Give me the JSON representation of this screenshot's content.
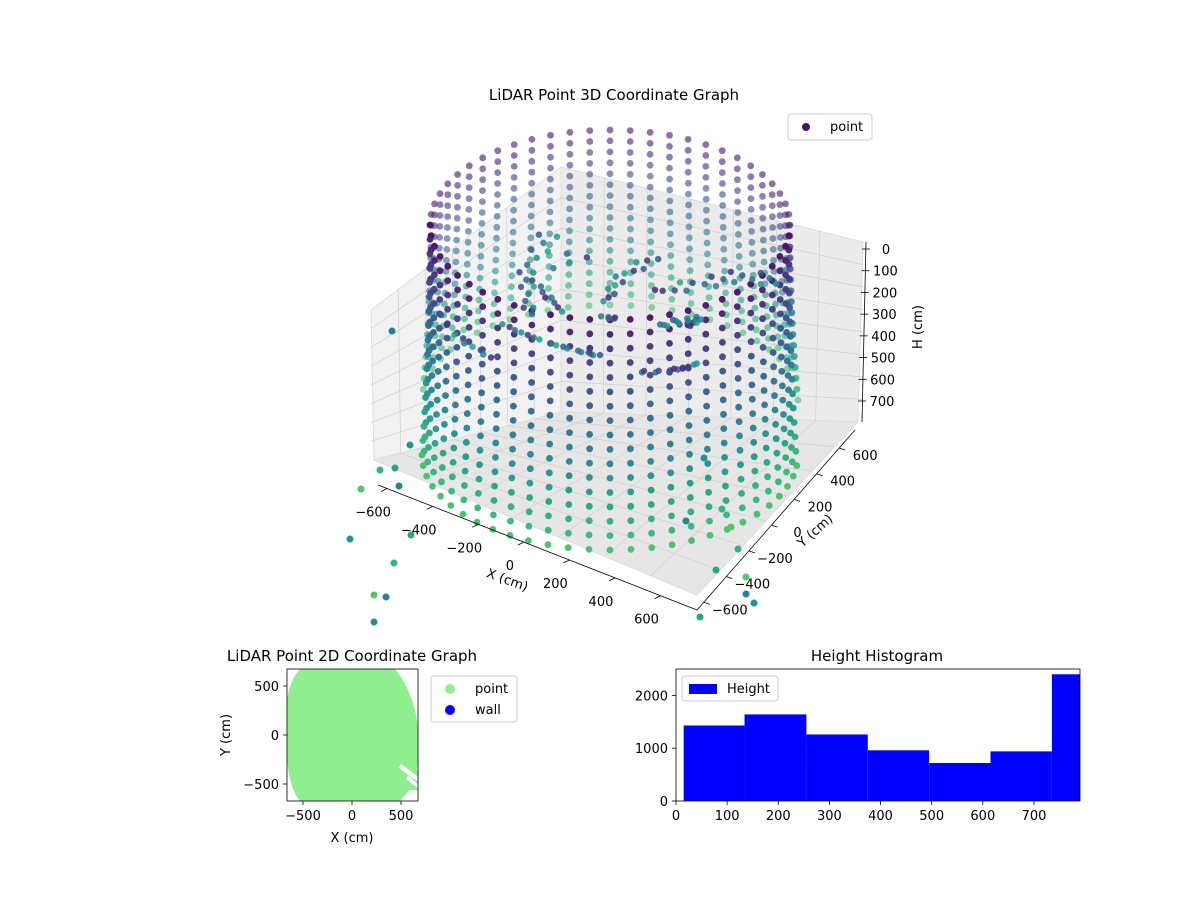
{
  "chart_data": [
    {
      "type": "scatter3d",
      "title": "LiDAR Point 3D Coordinate Graph",
      "xlabel": "X (cm)",
      "ylabel": "Y (cm)",
      "zlabel": "H (cm)",
      "x_ticks": [
        "−600",
        "−400",
        "−200",
        "0",
        "200",
        "400",
        "600"
      ],
      "y_ticks": [
        "−600",
        "−400",
        "−200",
        "0",
        "200",
        "400",
        "600"
      ],
      "z_ticks": [
        "0",
        "100",
        "200",
        "300",
        "400",
        "500",
        "600",
        "700"
      ],
      "xlim": [
        -700,
        700
      ],
      "ylim": [
        -700,
        700
      ],
      "zlim": [
        0,
        790
      ],
      "z_inverted": true,
      "colormap": "viridis",
      "legend": [
        {
          "label": "point",
          "color": "#46166b"
        }
      ],
      "legend_position": "upper right",
      "grid": true
    },
    {
      "type": "scatter",
      "title": "LiDAR Point 2D Coordinate Graph",
      "xlabel": "X (cm)",
      "ylabel": "Y (cm)",
      "x_ticks": [
        "−500",
        "0",
        "500"
      ],
      "y_ticks": [
        "500",
        "0",
        "−500"
      ],
      "xlim": [
        -690,
        690
      ],
      "ylim": [
        -690,
        690
      ],
      "series": [
        {
          "name": "point",
          "color": "#90ee90"
        },
        {
          "name": "wall",
          "color": "#0000ff"
        }
      ],
      "legend_position": "outside right"
    },
    {
      "type": "bar",
      "title": "Height Histogram",
      "x_ticks": [
        "0",
        "100",
        "200",
        "300",
        "400",
        "500",
        "600",
        "700"
      ],
      "y_ticks": [
        "0",
        "1000",
        "2000"
      ],
      "bins": [
        {
          "start": 15,
          "end": 134,
          "count": 1430
        },
        {
          "start": 134,
          "end": 255,
          "count": 1640
        },
        {
          "start": 255,
          "end": 375,
          "count": 1260
        },
        {
          "start": 375,
          "end": 495,
          "count": 960
        },
        {
          "start": 495,
          "end": 615,
          "count": 720
        },
        {
          "start": 615,
          "end": 735,
          "count": 940
        },
        {
          "start": 735,
          "end": 790,
          "count": 2400
        }
      ],
      "xlim": [
        0,
        790
      ],
      "ylim": [
        0,
        2500
      ],
      "series": [
        {
          "name": "Height",
          "color": "#0000ff"
        }
      ],
      "legend_position": "upper left"
    }
  ]
}
